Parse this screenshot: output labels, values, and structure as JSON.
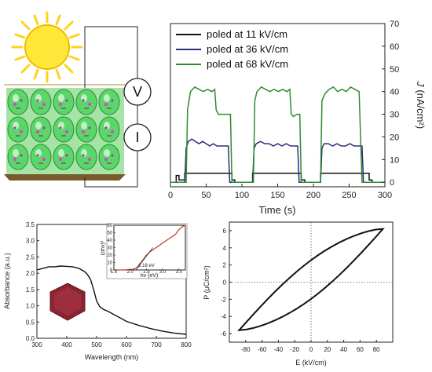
{
  "colors": {
    "series_11": "#111111",
    "series_36": "#2b2b7a",
    "series_68": "#2e8b2e",
    "abs_curve": "#111111",
    "tauc_curve": "#c0392b",
    "loop": "#111111",
    "sun": "#ffe23a",
    "crystal": "#4fd66a",
    "particle": "#8a2433"
  },
  "schematic": {
    "voltmeter_label": "V",
    "ammeter_label": "I"
  },
  "chart_data": [
    {
      "id": "photocurrent",
      "type": "line",
      "xlabel": "Time (s)",
      "ylabel_main": "J",
      "ylabel_unit": "(nA/cm²)",
      "xlim": [
        0,
        300
      ],
      "ylim": [
        -2,
        70
      ],
      "xticks": [
        0,
        50,
        100,
        150,
        200,
        250,
        300
      ],
      "yticks": [
        0,
        10,
        20,
        30,
        40,
        50,
        60,
        70
      ],
      "legend_position": "top-left",
      "series": [
        {
          "name": "poled at 11 kV/cm",
          "color_key": "series_11",
          "x": [
            0,
            8,
            8,
            12,
            12,
            20,
            20,
            86,
            86,
            90,
            90,
            115,
            115,
            183,
            183,
            188,
            188,
            210,
            210,
            278,
            278,
            282,
            282,
            300
          ],
          "y": [
            0,
            0,
            3,
            3,
            1,
            1,
            4,
            4,
            1,
            1,
            0,
            0,
            4,
            4,
            1,
            1,
            0,
            0,
            4,
            4,
            1,
            1,
            0,
            0
          ]
        },
        {
          "name": "poled at 36 kV/cm",
          "color_key": "series_36",
          "x": [
            0,
            20,
            22,
            25,
            30,
            35,
            40,
            45,
            50,
            55,
            60,
            65,
            70,
            75,
            81,
            83,
            115,
            117,
            120,
            126,
            132,
            138,
            144,
            150,
            156,
            162,
            168,
            174,
            178,
            180,
            210,
            212,
            215,
            221,
            227,
            233,
            239,
            245,
            251,
            257,
            263,
            268,
            270,
            300
          ],
          "y": [
            0,
            0,
            15,
            18,
            19,
            18,
            17,
            18,
            17,
            16,
            17,
            16,
            16,
            16,
            16,
            0,
            0,
            15,
            17,
            18,
            17,
            17,
            16,
            17,
            16,
            17,
            16,
            16,
            16,
            0,
            0,
            15,
            17,
            17,
            16,
            17,
            16,
            16,
            17,
            16,
            16,
            16,
            0,
            0
          ]
        },
        {
          "name": "poled at 68 kV/cm",
          "color_key": "series_68",
          "x": [
            0,
            22,
            24,
            28,
            34,
            40,
            46,
            52,
            58,
            62,
            64,
            67,
            72,
            80,
            84,
            86,
            116,
            118,
            121,
            127,
            133,
            139,
            145,
            151,
            157,
            163,
            167,
            169,
            172,
            177,
            181,
            183,
            210,
            212,
            216,
            222,
            228,
            234,
            240,
            246,
            252,
            258,
            264,
            268,
            272,
            276,
            300
          ],
          "y": [
            0,
            0,
            32,
            40,
            42,
            41,
            40,
            41,
            40,
            41,
            32,
            30,
            30,
            30,
            30,
            0,
            0,
            36,
            40,
            42,
            41,
            40,
            41,
            40,
            41,
            40,
            41,
            30,
            29,
            30,
            30,
            0,
            0,
            36,
            39,
            41,
            42,
            40,
            41,
            40,
            42,
            41,
            40,
            0,
            0,
            0,
            0
          ]
        }
      ]
    },
    {
      "id": "absorbance",
      "type": "line",
      "xlabel": "Wavelength (nm)",
      "ylabel": "Absorbance (a.u.)",
      "xlim": [
        300,
        800
      ],
      "ylim": [
        0,
        3.5
      ],
      "xticks": [
        300,
        400,
        500,
        600,
        700,
        800
      ],
      "yticks": [
        0.0,
        0.5,
        1.0,
        1.5,
        2.0,
        2.5,
        3.0,
        3.5
      ],
      "x": [
        300,
        320,
        340,
        360,
        380,
        400,
        420,
        440,
        460,
        470,
        480,
        490,
        500,
        510,
        520,
        540,
        560,
        580,
        600,
        640,
        680,
        720,
        760,
        800
      ],
      "y": [
        2.1,
        2.15,
        2.2,
        2.2,
        2.22,
        2.21,
        2.2,
        2.15,
        2.05,
        1.95,
        1.8,
        1.5,
        1.15,
        0.98,
        0.9,
        0.82,
        0.72,
        0.62,
        0.52,
        0.4,
        0.3,
        0.22,
        0.16,
        0.12
      ],
      "inset": {
        "type": "line",
        "xlabel": "hν (eV)",
        "ylabel": "(αhν)²",
        "xlim": [
          1.5,
          3.7
        ],
        "ylim": [
          0,
          60
        ],
        "xticks": [
          1.5,
          2.0,
          2.5,
          3.0,
          3.5
        ],
        "yticks": [
          0,
          10,
          20,
          30,
          40,
          50,
          60
        ],
        "x": [
          1.5,
          1.8,
          2.0,
          2.1,
          2.15,
          2.2,
          2.3,
          2.4,
          2.5,
          2.6,
          2.8,
          3.0,
          3.2,
          3.4,
          3.5,
          3.6,
          3.7
        ],
        "y": [
          0,
          0,
          0.5,
          1,
          2,
          3,
          8,
          14,
          20,
          24,
          30,
          36,
          42,
          48,
          54,
          58,
          60
        ],
        "annotation": "2.18 eV",
        "annotation_x": 2.18
      }
    },
    {
      "id": "hysteresis",
      "type": "line",
      "xlabel": "E (kV/cm)",
      "ylabel": "P (μC/cm²)",
      "xlim": [
        -100,
        100
      ],
      "ylim": [
        -7,
        7
      ],
      "xticks": [
        -80,
        -60,
        -40,
        -20,
        0,
        20,
        40,
        60,
        80
      ],
      "yticks": [
        -6,
        -4,
        -2,
        0,
        2,
        4,
        6
      ],
      "center_lines": true
    }
  ]
}
